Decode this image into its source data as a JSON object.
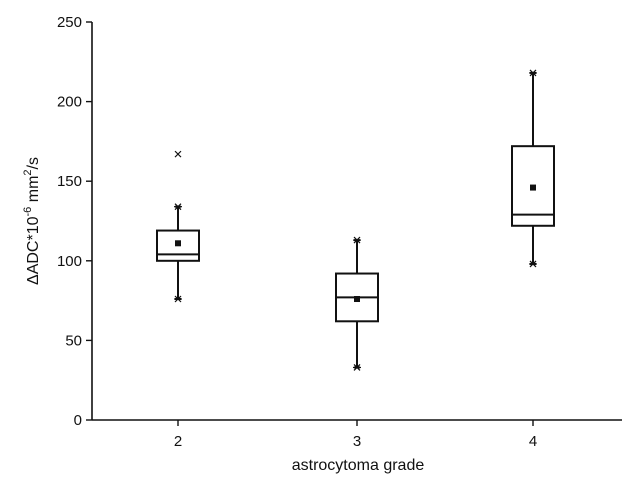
{
  "chart_data": {
    "type": "box",
    "xlabel": "astrocytoma grade",
    "ylabel": {
      "prefix": "ΔADC*10",
      "exp1": "-6",
      "mid": " mm",
      "exp2": "2",
      "suffix": "/s"
    },
    "ylim": [
      0,
      250
    ],
    "y_ticks": [
      0,
      50,
      100,
      150,
      200,
      250
    ],
    "categories": [
      "2",
      "3",
      "4"
    ],
    "boxes": [
      {
        "category": "2",
        "whisker_low": 76,
        "q1": 100,
        "median": 104,
        "q3": 119,
        "whisker_high": 134,
        "mean": 111,
        "min": 76,
        "max": 134,
        "outliers": [
          167
        ]
      },
      {
        "category": "3",
        "whisker_low": 33,
        "q1": 62,
        "median": 77,
        "q3": 92,
        "whisker_high": 113,
        "mean": 76,
        "min": 33,
        "max": 113,
        "outliers": []
      },
      {
        "category": "4",
        "whisker_low": 98,
        "q1": 122,
        "median": 129,
        "q3": 172,
        "whisker_high": 218,
        "mean": 146,
        "min": 98,
        "max": 218,
        "outliers": []
      }
    ],
    "grid": false,
    "legend": "none"
  }
}
